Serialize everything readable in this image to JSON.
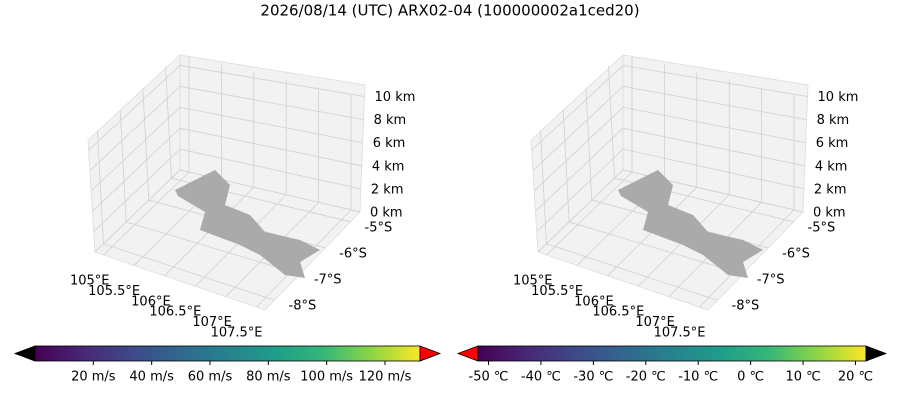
{
  "title": "2026/08/14 (UTC) ARX02-04 (100000002a1ced20)",
  "chart_data": [
    {
      "type": "quiver3d",
      "xticks": [
        {
          "value": 105,
          "label": "105°E"
        },
        {
          "value": 105.5,
          "label": "105.5°E"
        },
        {
          "value": 106,
          "label": "106°E"
        },
        {
          "value": 106.5,
          "label": "106.5°E"
        },
        {
          "value": 107,
          "label": "107°E"
        },
        {
          "value": 107.5,
          "label": "107.5°E"
        }
      ],
      "yticks": [
        {
          "value": -5,
          "label": "-5°S"
        },
        {
          "value": -6,
          "label": "-6°S"
        },
        {
          "value": -7,
          "label": "-7°S"
        },
        {
          "value": -8,
          "label": "-8°S"
        }
      ],
      "zticks": [
        {
          "value": 0,
          "label": "0 km"
        },
        {
          "value": 2,
          "label": "2 km"
        },
        {
          "value": 4,
          "label": "4 km"
        },
        {
          "value": 6,
          "label": "6 km"
        },
        {
          "value": 8,
          "label": "8 km"
        },
        {
          "value": 10,
          "label": "10 km"
        }
      ],
      "colorbar": {
        "clim": [
          0,
          132
        ],
        "low_color": "#000000",
        "high_color": "#ff0000",
        "ticks": [
          {
            "value": 20,
            "label": "20 m/s"
          },
          {
            "value": 40,
            "label": "40 m/s"
          },
          {
            "value": 60,
            "label": "60 m/s"
          },
          {
            "value": 80,
            "label": "80 m/s"
          },
          {
            "value": 100,
            "label": "100 m/s"
          },
          {
            "value": 120,
            "label": "120 m/s"
          }
        ]
      }
    },
    {
      "type": "voxel3d",
      "xticks": [
        {
          "value": 105,
          "label": "105°E"
        },
        {
          "value": 105.5,
          "label": "105.5°E"
        },
        {
          "value": 106,
          "label": "106°E"
        },
        {
          "value": 106.5,
          "label": "106.5°E"
        },
        {
          "value": 107,
          "label": "107°E"
        },
        {
          "value": 107.5,
          "label": "107.5°E"
        }
      ],
      "yticks": [
        {
          "value": -5,
          "label": "-5°S"
        },
        {
          "value": -6,
          "label": "-6°S"
        },
        {
          "value": -7,
          "label": "-7°S"
        },
        {
          "value": -8,
          "label": "-8°S"
        }
      ],
      "zticks": [
        {
          "value": 0,
          "label": "0 km"
        },
        {
          "value": 2,
          "label": "2 km"
        },
        {
          "value": 4,
          "label": "4 km"
        },
        {
          "value": 6,
          "label": "6 km"
        },
        {
          "value": 8,
          "label": "8 km"
        },
        {
          "value": 10,
          "label": "10 km"
        }
      ],
      "colorbar": {
        "clim": [
          -52,
          22
        ],
        "low_color": "#ff0000",
        "high_color": "#000000",
        "ticks": [
          {
            "value": -50,
            "label": "-50 ℃"
          },
          {
            "value": -40,
            "label": "-40 ℃"
          },
          {
            "value": -30,
            "label": "-30 ℃"
          },
          {
            "value": -20,
            "label": "-20 ℃"
          },
          {
            "value": -10,
            "label": "-10 ℃"
          },
          {
            "value": 0,
            "label": "0 ℃"
          },
          {
            "value": 10,
            "label": "10 ℃"
          },
          {
            "value": 20,
            "label": "20 ℃"
          }
        ]
      }
    }
  ]
}
